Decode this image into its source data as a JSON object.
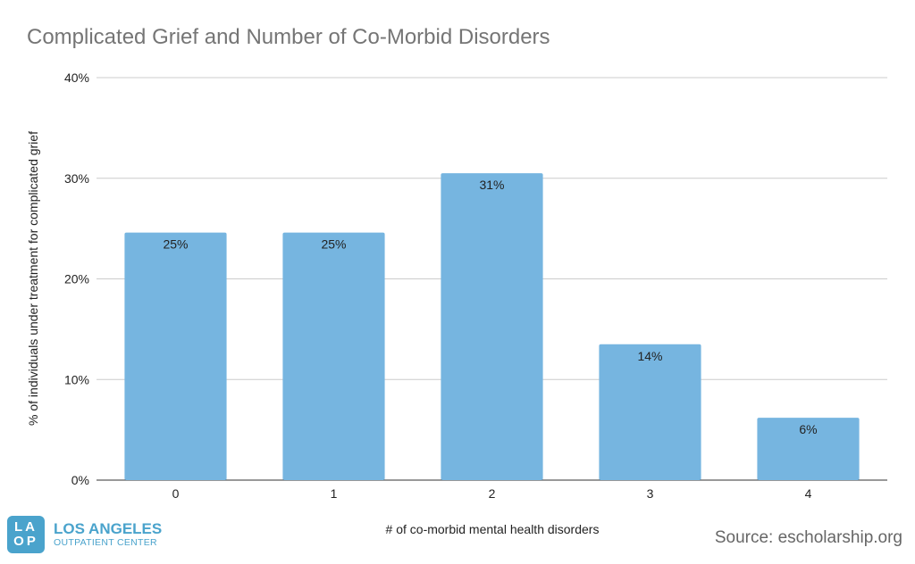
{
  "chart_data": {
    "type": "bar",
    "title": "Complicated Grief and Number of Co-Morbid Disorders",
    "xlabel": "# of co-morbid mental health disorders",
    "ylabel": "% of individuals under treatment for complicated grief",
    "categories": [
      "0",
      "1",
      "2",
      "3",
      "4"
    ],
    "values": [
      24.6,
      24.6,
      30.5,
      13.5,
      6.2
    ],
    "data_labels": [
      "25%",
      "25%",
      "31%",
      "14%",
      "6%"
    ],
    "ylim": [
      0,
      40
    ],
    "yticks": [
      0,
      10,
      20,
      30,
      40
    ],
    "ytick_labels": [
      "0%",
      "10%",
      "20%",
      "30%",
      "40%"
    ],
    "grid": true,
    "bar_color": "#76b5e0"
  },
  "source": "Source: escholarship.org",
  "logo": {
    "mark_top": "LA",
    "mark_bottom": "OP",
    "line1": "LOS ANGELES",
    "line2": "OUTPATIENT CENTER"
  }
}
